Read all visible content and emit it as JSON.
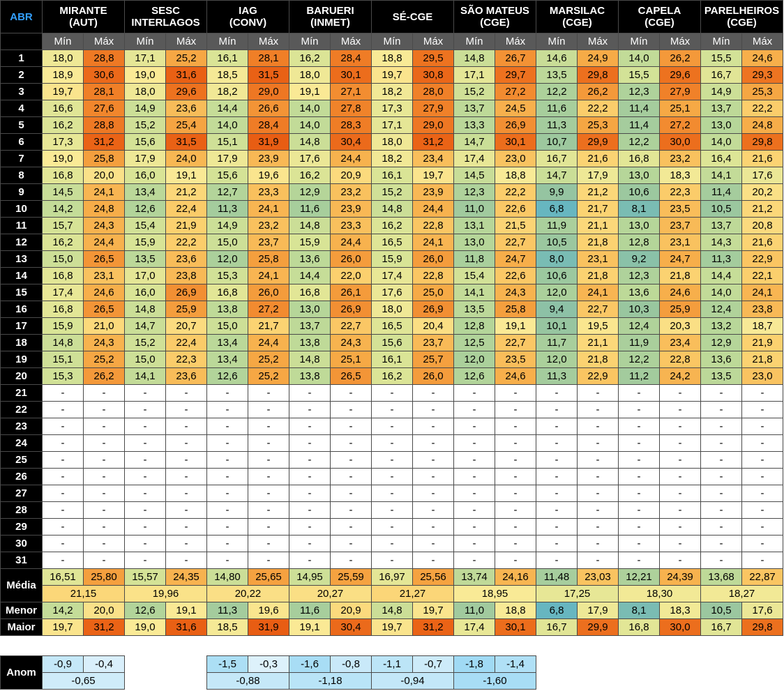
{
  "month_label": "ABR",
  "stations": [
    {
      "line1": "MIRANTE",
      "line2": "(AUT)"
    },
    {
      "line1": "SESC",
      "line2": "INTERLAGOS"
    },
    {
      "line1": "IAG",
      "line2": "(CONV)"
    },
    {
      "line1": "BARUERI",
      "line2": "(INMET)"
    },
    {
      "line1": "SÉ-CGE",
      "line2": ""
    },
    {
      "line1": "SÃO MATEUS",
      "line2": "(CGE)"
    },
    {
      "line1": "MARSILAC",
      "line2": "(CGE)"
    },
    {
      "line1": "CAPELA",
      "line2": "(CGE)"
    },
    {
      "line1": "PARELHEIROS",
      "line2": "(CGE)"
    }
  ],
  "sub_min": "Mín",
  "sub_max": "Máx",
  "days": [
    {
      "d": "1",
      "v": [
        "18,0",
        "28,8",
        "17,1",
        "25,2",
        "16,1",
        "28,1",
        "16,2",
        "28,4",
        "18,8",
        "29,5",
        "14,8",
        "26,7",
        "14,6",
        "24,9",
        "14,0",
        "26,2",
        "15,5",
        "24,6"
      ]
    },
    {
      "d": "2",
      "v": [
        "18,9",
        "30,6",
        "19,0",
        "31,6",
        "18,5",
        "31,5",
        "18,0",
        "30,1",
        "19,7",
        "30,8",
        "17,1",
        "29,7",
        "13,5",
        "29,8",
        "15,5",
        "29,6",
        "16,7",
        "29,3"
      ]
    },
    {
      "d": "3",
      "v": [
        "19,7",
        "28,1",
        "18,0",
        "29,6",
        "18,2",
        "29,0",
        "19,1",
        "27,1",
        "18,2",
        "28,0",
        "15,2",
        "27,2",
        "12,2",
        "26,2",
        "12,3",
        "27,9",
        "14,9",
        "25,3"
      ]
    },
    {
      "d": "4",
      "v": [
        "16,6",
        "27,6",
        "14,9",
        "23,6",
        "14,4",
        "26,6",
        "14,0",
        "27,8",
        "17,3",
        "27,9",
        "13,7",
        "24,5",
        "11,6",
        "22,2",
        "11,4",
        "25,1",
        "13,7",
        "22,2"
      ]
    },
    {
      "d": "5",
      "v": [
        "16,2",
        "28,8",
        "15,2",
        "25,4",
        "14,0",
        "28,4",
        "14,0",
        "28,3",
        "17,1",
        "29,0",
        "13,3",
        "26,9",
        "11,3",
        "25,3",
        "11,4",
        "27,2",
        "13,0",
        "24,8"
      ]
    },
    {
      "d": "6",
      "v": [
        "17,3",
        "31,2",
        "15,6",
        "31,5",
        "15,1",
        "31,9",
        "14,8",
        "30,4",
        "18,0",
        "31,2",
        "14,7",
        "30,1",
        "10,7",
        "29,9",
        "12,2",
        "30,0",
        "14,0",
        "29,8"
      ]
    },
    {
      "d": "7",
      "v": [
        "19,0",
        "25,8",
        "17,9",
        "24,0",
        "17,9",
        "23,9",
        "17,6",
        "24,4",
        "18,2",
        "23,4",
        "17,4",
        "23,0",
        "16,7",
        "21,6",
        "16,8",
        "23,2",
        "16,4",
        "21,6"
      ]
    },
    {
      "d": "8",
      "v": [
        "16,8",
        "20,0",
        "16,0",
        "19,1",
        "15,6",
        "19,6",
        "16,2",
        "20,9",
        "16,1",
        "19,7",
        "14,5",
        "18,8",
        "14,7",
        "17,9",
        "13,0",
        "18,3",
        "14,1",
        "17,6"
      ]
    },
    {
      "d": "9",
      "v": [
        "14,5",
        "24,1",
        "13,4",
        "21,2",
        "12,7",
        "23,3",
        "12,9",
        "23,2",
        "15,2",
        "23,9",
        "12,3",
        "22,2",
        "9,9",
        "21,2",
        "10,6",
        "22,3",
        "11,4",
        "20,2"
      ]
    },
    {
      "d": "10",
      "v": [
        "14,2",
        "24,8",
        "12,6",
        "22,4",
        "11,3",
        "24,1",
        "11,6",
        "23,9",
        "14,8",
        "24,4",
        "11,0",
        "22,6",
        "6,8",
        "21,7",
        "8,1",
        "23,5",
        "10,5",
        "21,2"
      ]
    },
    {
      "d": "11",
      "v": [
        "15,7",
        "24,3",
        "15,4",
        "21,9",
        "14,9",
        "23,2",
        "14,8",
        "23,3",
        "16,2",
        "22,8",
        "13,1",
        "21,5",
        "11,9",
        "21,1",
        "13,0",
        "23,7",
        "13,7",
        "20,8"
      ]
    },
    {
      "d": "12",
      "v": [
        "16,2",
        "24,4",
        "15,9",
        "22,2",
        "15,0",
        "23,7",
        "15,9",
        "24,4",
        "16,5",
        "24,1",
        "13,0",
        "22,7",
        "10,5",
        "21,8",
        "12,8",
        "23,1",
        "14,3",
        "21,6"
      ]
    },
    {
      "d": "13",
      "v": [
        "15,0",
        "26,5",
        "13,5",
        "23,6",
        "12,0",
        "25,8",
        "13,6",
        "26,0",
        "15,9",
        "26,0",
        "11,8",
        "24,7",
        "8,0",
        "23,1",
        "9,2",
        "24,7",
        "11,3",
        "22,9"
      ]
    },
    {
      "d": "14",
      "v": [
        "16,8",
        "23,1",
        "17,0",
        "23,8",
        "15,3",
        "24,1",
        "14,4",
        "22,0",
        "17,4",
        "22,8",
        "15,4",
        "22,6",
        "10,6",
        "21,8",
        "12,3",
        "21,8",
        "14,4",
        "22,1"
      ]
    },
    {
      "d": "15",
      "v": [
        "17,4",
        "24,6",
        "16,0",
        "26,9",
        "16,8",
        "26,0",
        "16,8",
        "26,1",
        "17,6",
        "25,0",
        "14,1",
        "24,3",
        "12,0",
        "24,1",
        "13,6",
        "24,6",
        "14,0",
        "24,1"
      ]
    },
    {
      "d": "16",
      "v": [
        "16,8",
        "26,5",
        "14,8",
        "25,9",
        "13,8",
        "27,2",
        "13,0",
        "26,9",
        "18,0",
        "26,9",
        "13,5",
        "25,8",
        "9,4",
        "22,7",
        "10,3",
        "25,9",
        "12,4",
        "23,8"
      ]
    },
    {
      "d": "17",
      "v": [
        "15,9",
        "21,0",
        "14,7",
        "20,7",
        "15,0",
        "21,7",
        "13,7",
        "22,7",
        "16,5",
        "20,4",
        "12,8",
        "19,1",
        "10,1",
        "19,5",
        "12,4",
        "20,3",
        "13,2",
        "18,7"
      ]
    },
    {
      "d": "18",
      "v": [
        "14,8",
        "24,3",
        "15,2",
        "22,4",
        "13,4",
        "24,4",
        "13,8",
        "24,3",
        "15,6",
        "23,7",
        "12,5",
        "22,7",
        "11,7",
        "21,1",
        "11,9",
        "23,4",
        "12,9",
        "21,9"
      ]
    },
    {
      "d": "19",
      "v": [
        "15,1",
        "25,2",
        "15,0",
        "22,3",
        "13,4",
        "25,2",
        "14,8",
        "25,1",
        "16,1",
        "25,7",
        "12,0",
        "23,5",
        "12,0",
        "21,8",
        "12,2",
        "22,8",
        "13,6",
        "21,8"
      ]
    },
    {
      "d": "20",
      "v": [
        "15,3",
        "26,2",
        "14,1",
        "23,6",
        "12,6",
        "25,2",
        "13,8",
        "26,5",
        "16,2",
        "26,0",
        "12,6",
        "24,6",
        "11,3",
        "22,9",
        "11,2",
        "24,2",
        "13,5",
        "23,0"
      ]
    }
  ],
  "empty_days": [
    "21",
    "22",
    "23",
    "24",
    "25",
    "26",
    "27",
    "28",
    "29",
    "30",
    "31"
  ],
  "dash": "-",
  "media_label": "Média",
  "media": [
    "16,51",
    "25,80",
    "15,57",
    "24,35",
    "14,80",
    "25,65",
    "14,95",
    "25,59",
    "16,97",
    "25,56",
    "13,74",
    "24,16",
    "11,48",
    "23,03",
    "12,21",
    "24,39",
    "13,68",
    "22,87"
  ],
  "media_avg": [
    "21,15",
    "19,96",
    "20,22",
    "20,27",
    "21,27",
    "18,95",
    "17,25",
    "18,30",
    "18,27"
  ],
  "menor_label": "Menor",
  "menor": [
    "14,2",
    "20,0",
    "12,6",
    "19,1",
    "11,3",
    "19,6",
    "11,6",
    "20,9",
    "14,8",
    "19,7",
    "11,0",
    "18,8",
    "6,8",
    "17,9",
    "8,1",
    "18,3",
    "10,5",
    "17,6"
  ],
  "maior_label": "Maior",
  "maior": [
    "19,7",
    "31,2",
    "19,0",
    "31,6",
    "18,5",
    "31,9",
    "19,1",
    "30,4",
    "19,7",
    "31,2",
    "17,4",
    "30,1",
    "16,7",
    "29,9",
    "16,8",
    "30,0",
    "16,7",
    "29,8"
  ],
  "anom_label": "Anom",
  "anom": [
    {
      "station": 0,
      "min": "-0,9",
      "max": "-0,4",
      "avg": "-0,65"
    },
    {
      "station": 2,
      "min": "-1,5",
      "max": "-0,3",
      "avg": "-0,88"
    },
    {
      "station": 3,
      "min": "-1,6",
      "max": "-0,8",
      "avg": "-1,18"
    },
    {
      "station": 4,
      "min": "-1,1",
      "max": "-0,7",
      "avg": "-0,94"
    },
    {
      "station": 5,
      "min": "-1,8",
      "max": "-1,4",
      "avg": "-1,60"
    }
  ]
}
